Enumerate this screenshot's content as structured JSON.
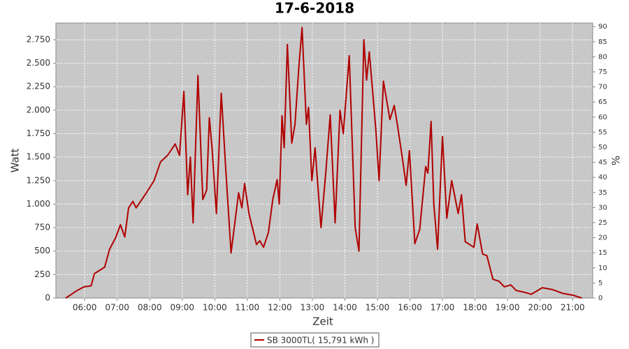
{
  "chart_data": {
    "type": "line",
    "title": "17-6-2018",
    "x_label": "Zeit",
    "y_label": "Watt",
    "y2_label": "%",
    "x": [
      "05:25",
      "05:33",
      "05:46",
      "05:59",
      "06:12",
      "06:18",
      "06:37",
      "06:46",
      "06:57",
      "07:06",
      "07:14",
      "07:21",
      "07:29",
      "07:35",
      "07:55",
      "08:08",
      "08:20",
      "08:33",
      "08:47",
      "08:55",
      "09:03",
      "09:10",
      "09:15",
      "09:20",
      "09:29",
      "09:38",
      "09:45",
      "09:50",
      "09:55",
      "10:03",
      "10:12",
      "10:20",
      "10:30",
      "10:44",
      "10:50",
      "10:55",
      "11:03",
      "11:17",
      "11:23",
      "11:30",
      "11:39",
      "11:47",
      "11:55",
      "11:59",
      "12:04",
      "12:08",
      "12:14",
      "12:22",
      "12:28",
      "12:35",
      "12:41",
      "12:49",
      "12:53",
      "12:59",
      "13:05",
      "13:16",
      "13:25",
      "13:33",
      "13:42",
      "13:51",
      "13:57",
      "14:08",
      "14:19",
      "14:26",
      "14:35",
      "14:40",
      "14:45",
      "14:57",
      "15:03",
      "15:11",
      "15:23",
      "15:31",
      "15:37",
      "15:47",
      "15:53",
      "15:59",
      "16:09",
      "16:18",
      "16:29",
      "16:33",
      "16:39",
      "16:44",
      "16:51",
      "17:00",
      "17:08",
      "17:17",
      "17:29",
      "17:35",
      "17:42",
      "17:58",
      "18:04",
      "18:14",
      "18:22",
      "18:33",
      "18:44",
      "18:54",
      "19:06",
      "19:16",
      "19:32",
      "19:44",
      "20:04",
      "20:23",
      "20:42",
      "21:01",
      "21:12",
      "21:17"
    ],
    "series": [
      {
        "name": "SB 3000TL( 15,791 kWh )",
        "color": "#b00000",
        "values": [
          0,
          30,
          80,
          120,
          130,
          260,
          330,
          520,
          640,
          780,
          650,
          960,
          1030,
          960,
          1130,
          1250,
          1450,
          1520,
          1640,
          1520,
          2200,
          1100,
          1500,
          800,
          2370,
          1050,
          1150,
          1920,
          1600,
          900,
          2180,
          1400,
          480,
          1120,
          960,
          1220,
          900,
          570,
          610,
          540,
          700,
          1050,
          1260,
          1000,
          1940,
          1600,
          2700,
          1650,
          1850,
          2450,
          2880,
          1850,
          2030,
          1250,
          1600,
          750,
          1350,
          1950,
          800,
          2000,
          1750,
          2580,
          750,
          500,
          2750,
          2320,
          2620,
          1800,
          1250,
          2310,
          1900,
          2050,
          1840,
          1450,
          1200,
          1570,
          580,
          730,
          1400,
          1330,
          1880,
          1000,
          520,
          1720,
          850,
          1250,
          900,
          1100,
          600,
          540,
          790,
          470,
          450,
          200,
          180,
          120,
          140,
          80,
          60,
          40,
          110,
          90,
          50,
          30,
          10,
          0
        ]
      }
    ],
    "xlim": [
      "05:07",
      "21:37"
    ],
    "xticks": [
      "06:00",
      "07:00",
      "08:00",
      "09:00",
      "10:00",
      "11:00",
      "12:00",
      "13:00",
      "14:00",
      "15:00",
      "16:00",
      "17:00",
      "18:00",
      "19:00",
      "20:00",
      "21:00"
    ],
    "ylim": [
      0,
      2928
    ],
    "yticks": [
      0,
      250,
      500,
      750,
      {
        "value": 1000,
        "label": "1.000"
      },
      {
        "value": 1250,
        "label": "1.250"
      },
      {
        "value": 1500,
        "label": "1.500"
      },
      {
        "value": 1750,
        "label": "1.750"
      },
      {
        "value": 2000,
        "label": "2.000"
      },
      {
        "value": 2250,
        "label": "2.250"
      },
      {
        "value": 2500,
        "label": "2.500"
      },
      {
        "value": 2750,
        "label": "2.750"
      }
    ],
    "y2lim": [
      0,
      91.2
    ],
    "y2ticks": [
      0,
      5,
      10,
      15,
      20,
      25,
      30,
      35,
      40,
      45,
      50,
      55,
      60,
      65,
      70,
      75,
      80,
      85,
      90
    ],
    "grid": true,
    "legend": "bottom"
  }
}
